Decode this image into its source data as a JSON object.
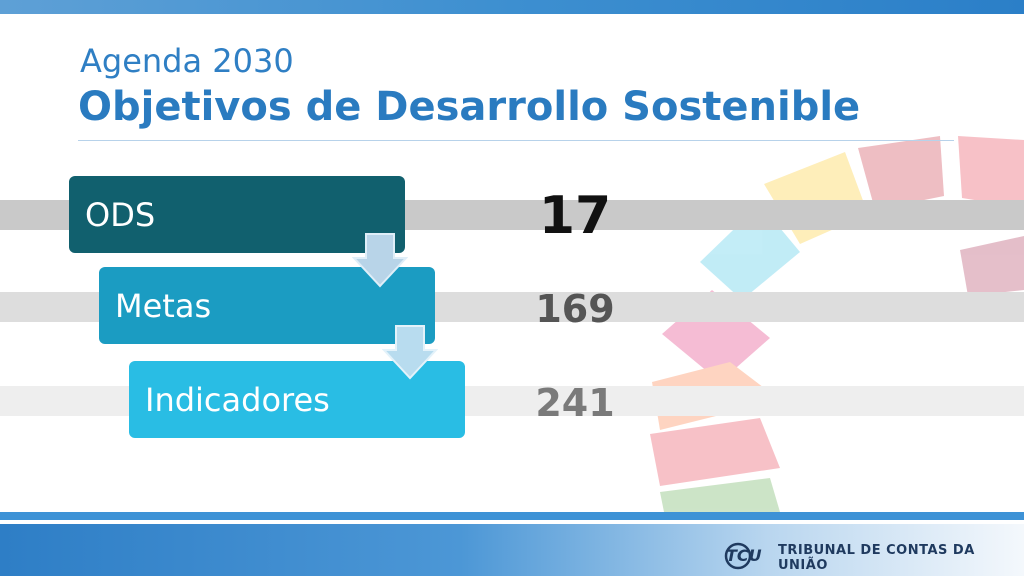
{
  "header": {
    "subtitle": "Agenda 2030",
    "title": "Objetivos de Desarrollo Sostenible"
  },
  "hierarchy": [
    {
      "label": "ODS",
      "count": "17",
      "color": "#11606e"
    },
    {
      "label": "Metas",
      "count": "169",
      "color": "#1b9cc2"
    },
    {
      "label": "Indicadores",
      "count": "241",
      "color": "#29bde4"
    }
  ],
  "footer": {
    "logo_text": "TCU",
    "org_name": "TRIBUNAL DE CONTAS DA UNIÃO"
  },
  "colors": {
    "accent": "#2a7bc0",
    "footer_blue": "#2e7ec6"
  }
}
